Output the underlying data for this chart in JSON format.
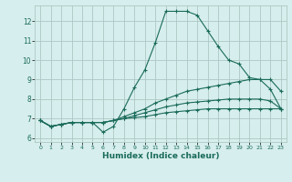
{
  "xlabel": "Humidex (Indice chaleur)",
  "xlim": [
    -0.5,
    23.5
  ],
  "ylim": [
    5.8,
    12.8
  ],
  "yticks": [
    6,
    7,
    8,
    9,
    10,
    11,
    12
  ],
  "xticks": [
    0,
    1,
    2,
    3,
    4,
    5,
    6,
    7,
    8,
    9,
    10,
    11,
    12,
    13,
    14,
    15,
    16,
    17,
    18,
    19,
    20,
    21,
    22,
    23
  ],
  "background_color": "#d6eeed",
  "grid_color": "#adc8c4",
  "line_color": "#1a6b5a",
  "lines": [
    {
      "x": [
        0,
        1,
        2,
        3,
        4,
        5,
        6,
        7,
        8,
        9,
        10,
        11,
        12,
        13,
        14,
        15,
        16,
        17,
        18,
        19,
        20,
        21,
        22,
        23
      ],
      "y": [
        6.9,
        6.6,
        6.7,
        6.8,
        6.8,
        6.8,
        6.3,
        6.6,
        7.5,
        8.6,
        9.5,
        10.9,
        12.5,
        12.5,
        12.5,
        12.3,
        11.5,
        10.7,
        10.0,
        9.8,
        9.1,
        9.0,
        8.5,
        7.5
      ]
    },
    {
      "x": [
        0,
        1,
        2,
        3,
        4,
        5,
        6,
        7,
        8,
        9,
        10,
        11,
        12,
        13,
        14,
        15,
        16,
        17,
        18,
        19,
        20,
        21,
        22,
        23
      ],
      "y": [
        6.9,
        6.6,
        6.7,
        6.8,
        6.8,
        6.8,
        6.8,
        6.9,
        7.1,
        7.3,
        7.5,
        7.8,
        8.0,
        8.2,
        8.4,
        8.5,
        8.6,
        8.7,
        8.8,
        8.9,
        9.0,
        9.0,
        9.0,
        8.4
      ]
    },
    {
      "x": [
        0,
        1,
        2,
        3,
        4,
        5,
        6,
        7,
        8,
        9,
        10,
        11,
        12,
        13,
        14,
        15,
        16,
        17,
        18,
        19,
        20,
        21,
        22,
        23
      ],
      "y": [
        6.9,
        6.6,
        6.7,
        6.8,
        6.8,
        6.8,
        6.8,
        6.9,
        7.0,
        7.15,
        7.3,
        7.45,
        7.6,
        7.7,
        7.8,
        7.85,
        7.9,
        7.95,
        8.0,
        8.0,
        8.0,
        8.0,
        7.9,
        7.5
      ]
    },
    {
      "x": [
        0,
        1,
        2,
        3,
        4,
        5,
        6,
        7,
        8,
        9,
        10,
        11,
        12,
        13,
        14,
        15,
        16,
        17,
        18,
        19,
        20,
        21,
        22,
        23
      ],
      "y": [
        6.9,
        6.6,
        6.7,
        6.8,
        6.8,
        6.8,
        6.8,
        6.9,
        7.0,
        7.05,
        7.1,
        7.2,
        7.3,
        7.35,
        7.4,
        7.45,
        7.5,
        7.5,
        7.5,
        7.5,
        7.5,
        7.5,
        7.5,
        7.5
      ]
    }
  ]
}
